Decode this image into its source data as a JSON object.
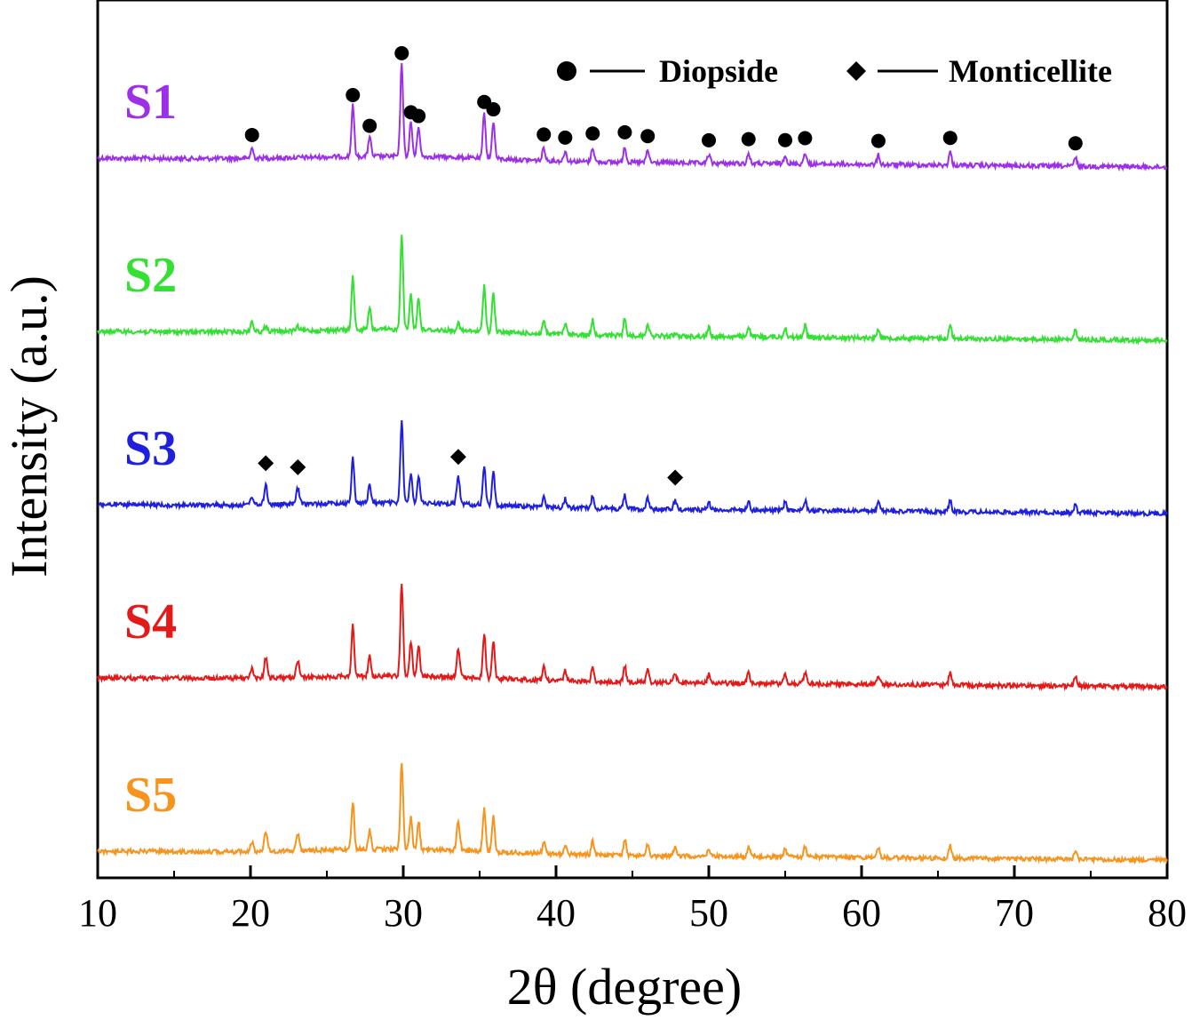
{
  "chart_data": {
    "type": "line",
    "title": "",
    "xlabel": "2θ (degree)",
    "ylabel": "Intensity (a.u.)",
    "xlim": [
      10,
      80
    ],
    "xticks": [
      10,
      20,
      30,
      40,
      50,
      60,
      70,
      80
    ],
    "yticks": "none",
    "grid": false,
    "legend": {
      "placement": "top-right",
      "entries": [
        {
          "marker": "circle",
          "label": "Diopside"
        },
        {
          "marker": "diamond",
          "label": "Monticellite"
        }
      ]
    },
    "series": [
      {
        "label": "S1",
        "color": "#9b30e8",
        "offset": 4
      },
      {
        "label": "S2",
        "color": "#33e033",
        "offset": 3
      },
      {
        "label": "S3",
        "color": "#1f1fe0",
        "offset": 2
      },
      {
        "label": "S4",
        "color": "#e41a1a",
        "offset": 1
      },
      {
        "label": "S5",
        "color": "#f7941d",
        "offset": 0
      }
    ],
    "diopside_peaks": [
      {
        "x": 20.1,
        "h": 0.14
      },
      {
        "x": 26.7,
        "h": 0.7
      },
      {
        "x": 27.8,
        "h": 0.28
      },
      {
        "x": 29.9,
        "h": 1.28
      },
      {
        "x": 30.5,
        "h": 0.47
      },
      {
        "x": 31.0,
        "h": 0.42
      },
      {
        "x": 35.3,
        "h": 0.62
      },
      {
        "x": 35.9,
        "h": 0.52
      },
      {
        "x": 39.2,
        "h": 0.18
      },
      {
        "x": 40.6,
        "h": 0.14
      },
      {
        "x": 42.4,
        "h": 0.2
      },
      {
        "x": 44.5,
        "h": 0.22
      },
      {
        "x": 46.0,
        "h": 0.17
      },
      {
        "x": 50.0,
        "h": 0.12
      },
      {
        "x": 52.6,
        "h": 0.14
      },
      {
        "x": 55.0,
        "h": 0.13
      },
      {
        "x": 56.3,
        "h": 0.16
      },
      {
        "x": 61.1,
        "h": 0.13
      },
      {
        "x": 65.8,
        "h": 0.18
      },
      {
        "x": 74.0,
        "h": 0.12
      }
    ],
    "monticellite_peaks": [
      {
        "x": 21.0,
        "h": 0.27
      },
      {
        "x": 23.1,
        "h": 0.22
      },
      {
        "x": 33.6,
        "h": 0.38
      },
      {
        "x": 47.8,
        "h": 0.12
      }
    ]
  }
}
